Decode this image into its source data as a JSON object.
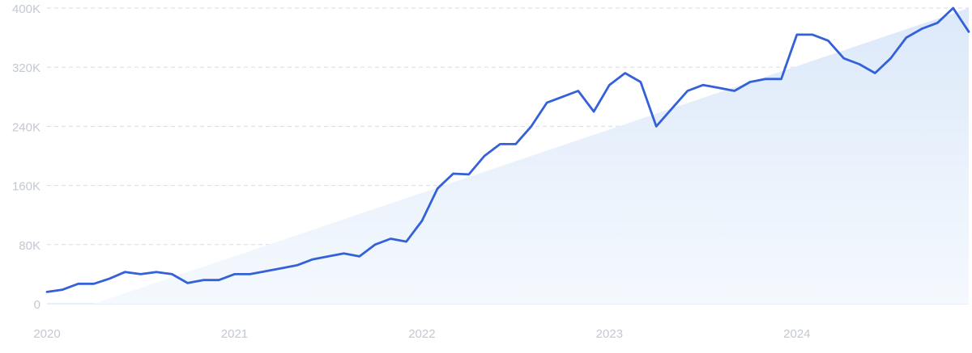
{
  "chart_data": {
    "type": "line",
    "title": "",
    "xlabel": "",
    "ylabel": "",
    "x_tick_labels": [
      "2020",
      "2021",
      "2022",
      "2023",
      "2024"
    ],
    "y_tick_labels": [
      "0",
      "80K",
      "160K",
      "240K",
      "320K",
      "400K"
    ],
    "y_ticks": [
      0,
      80000,
      160000,
      240000,
      320000,
      400000
    ],
    "ylim": [
      0,
      400000
    ],
    "xlim": [
      "2020-01",
      "2024-12"
    ],
    "grid": "horizontal dashed",
    "legend": "none",
    "colors": {
      "line": "#3461d9",
      "trend_fill_top": "#dce9f9",
      "trend_fill_bottom": "#f5f9fe",
      "grid": "#d5dde8",
      "tick_text": "#c3c8d2",
      "baseline": "#cfe0f3"
    },
    "series": [
      {
        "x": [
          "2020-01",
          "2020-02",
          "2020-03",
          "2020-04",
          "2020-05",
          "2020-06",
          "2020-07",
          "2020-08",
          "2020-09",
          "2020-10",
          "2020-11",
          "2020-12",
          "2021-01",
          "2021-02",
          "2021-03",
          "2021-04",
          "2021-05",
          "2021-06",
          "2021-07",
          "2021-08",
          "2021-09",
          "2021-10",
          "2021-11",
          "2021-12",
          "2022-01",
          "2022-02",
          "2022-03",
          "2022-04",
          "2022-05",
          "2022-06",
          "2022-07",
          "2022-08",
          "2022-09",
          "2022-10",
          "2022-11",
          "2022-12",
          "2023-01",
          "2023-02",
          "2023-03",
          "2023-04",
          "2023-05",
          "2023-06",
          "2023-07",
          "2023-08",
          "2023-09",
          "2023-10",
          "2023-11",
          "2023-12",
          "2024-01",
          "2024-02",
          "2024-03",
          "2024-04",
          "2024-05",
          "2024-06",
          "2024-07",
          "2024-08",
          "2024-09",
          "2024-10",
          "2024-11",
          "2024-12"
        ],
        "values": [
          16000,
          19000,
          27000,
          27000,
          34000,
          43000,
          40000,
          43000,
          40000,
          28000,
          32000,
          32000,
          40000,
          40000,
          44000,
          48000,
          52000,
          60000,
          64000,
          68000,
          64000,
          80000,
          88000,
          84000,
          112000,
          156000,
          176000,
          175000,
          200000,
          216000,
          216000,
          240000,
          272000,
          280000,
          288000,
          260000,
          296000,
          312000,
          300000,
          240000,
          264000,
          288000,
          296000,
          292000,
          288000,
          300000,
          304000,
          304000,
          364000,
          364000,
          356000,
          332000,
          324000,
          312000,
          332000,
          360000,
          372000,
          380000,
          400000,
          368000
        ]
      }
    ],
    "trend_area": {
      "start": {
        "x": "2020-04",
        "y": 0
      },
      "end": {
        "x": "2024-12",
        "y": 400000
      }
    }
  }
}
